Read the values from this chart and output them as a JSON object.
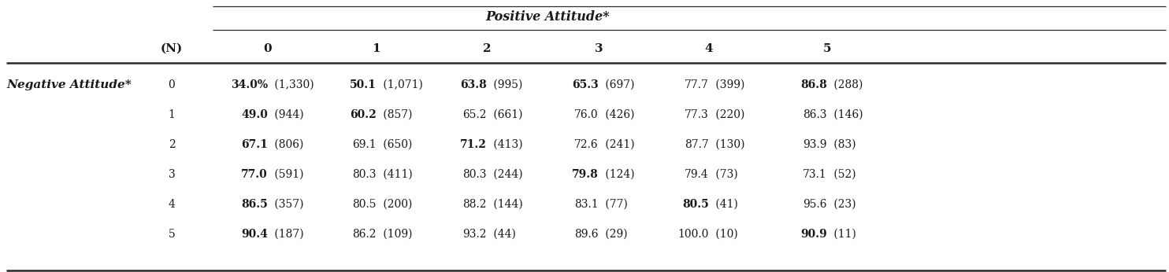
{
  "title": "Positive Attitude*",
  "row_header_label": "Negative Attitude*",
  "col_headers": [
    "(N)",
    "0",
    "1",
    "2",
    "3",
    "4",
    "5"
  ],
  "row_labels": [
    "0",
    "1",
    "2",
    "3",
    "4",
    "5"
  ],
  "cells": [
    [
      {
        "pct": "34.0%",
        "n": "(1,330)",
        "bold_pct": true
      },
      {
        "pct": "50.1",
        "n": "(1,071)",
        "bold_pct": true
      },
      {
        "pct": "63.8",
        "n": "(995)",
        "bold_pct": true
      },
      {
        "pct": "65.3",
        "n": "(697)",
        "bold_pct": true
      },
      {
        "pct": "77.7",
        "n": "(399)",
        "bold_pct": false
      },
      {
        "pct": "86.8",
        "n": "(288)",
        "bold_pct": true
      }
    ],
    [
      {
        "pct": "49.0",
        "n": "(944)",
        "bold_pct": true
      },
      {
        "pct": "60.2",
        "n": "(857)",
        "bold_pct": true
      },
      {
        "pct": "65.2",
        "n": "(661)",
        "bold_pct": false
      },
      {
        "pct": "76.0",
        "n": "(426)",
        "bold_pct": false
      },
      {
        "pct": "77.3",
        "n": "(220)",
        "bold_pct": false
      },
      {
        "pct": "86.3",
        "n": "(146)",
        "bold_pct": false
      }
    ],
    [
      {
        "pct": "67.1",
        "n": "(806)",
        "bold_pct": true
      },
      {
        "pct": "69.1",
        "n": "(650)",
        "bold_pct": false
      },
      {
        "pct": "71.2",
        "n": "(413)",
        "bold_pct": true
      },
      {
        "pct": "72.6",
        "n": "(241)",
        "bold_pct": false
      },
      {
        "pct": "87.7",
        "n": "(130)",
        "bold_pct": false
      },
      {
        "pct": "93.9",
        "n": "(83)",
        "bold_pct": false
      }
    ],
    [
      {
        "pct": "77.0",
        "n": "(591)",
        "bold_pct": true
      },
      {
        "pct": "80.3",
        "n": "(411)",
        "bold_pct": false
      },
      {
        "pct": "80.3",
        "n": "(244)",
        "bold_pct": false
      },
      {
        "pct": "79.8",
        "n": "(124)",
        "bold_pct": true
      },
      {
        "pct": "79.4",
        "n": "(73)",
        "bold_pct": false
      },
      {
        "pct": "73.1",
        "n": "(52)",
        "bold_pct": false
      }
    ],
    [
      {
        "pct": "86.5",
        "n": "(357)",
        "bold_pct": true
      },
      {
        "pct": "80.5",
        "n": "(200)",
        "bold_pct": false
      },
      {
        "pct": "88.2",
        "n": "(144)",
        "bold_pct": false
      },
      {
        "pct": "83.1",
        "n": "(77)",
        "bold_pct": false
      },
      {
        "pct": "80.5",
        "n": "(41)",
        "bold_pct": true
      },
      {
        "pct": "95.6",
        "n": "(23)",
        "bold_pct": false
      }
    ],
    [
      {
        "pct": "90.4",
        "n": "(187)",
        "bold_pct": true
      },
      {
        "pct": "86.2",
        "n": "(109)",
        "bold_pct": false
      },
      {
        "pct": "93.2",
        "n": "(44)",
        "bold_pct": false
      },
      {
        "pct": "89.6",
        "n": "(29)",
        "bold_pct": false
      },
      {
        "pct": "100.0",
        "n": "(10)",
        "bold_pct": false
      },
      {
        "pct": "90.9",
        "n": "(11)",
        "bold_pct": true
      }
    ]
  ],
  "bg_color": "#ffffff",
  "text_color": "#1a1a1a",
  "line_color": "#2a2a2a",
  "font_size_title": 11.5,
  "font_size_col_header": 11,
  "font_size_cell": 10,
  "font_size_row_label": 10,
  "font_size_neg_label": 11
}
